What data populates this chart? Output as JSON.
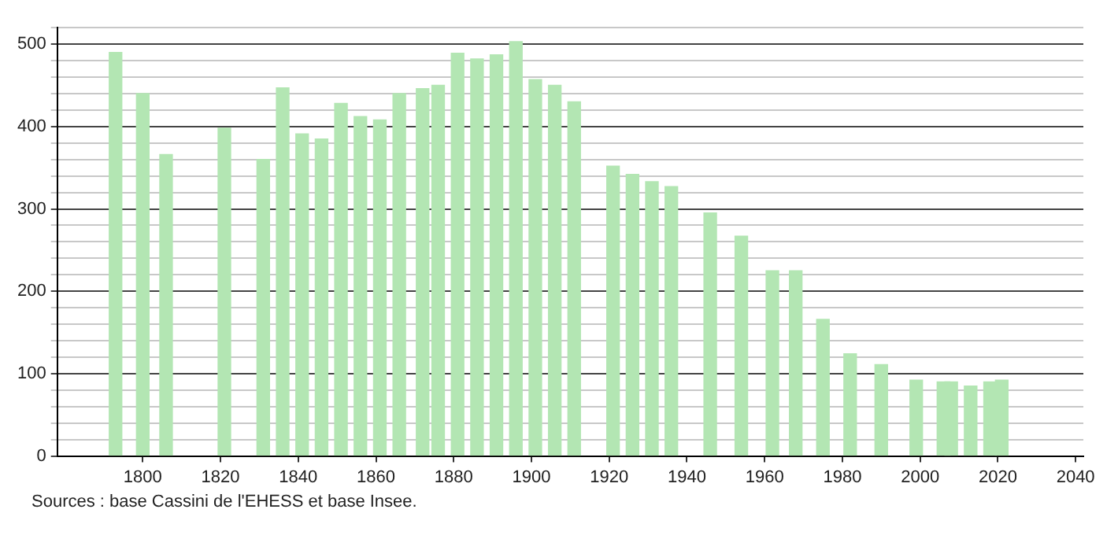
{
  "chart_data": {
    "type": "bar",
    "x": [
      1793,
      1800,
      1806,
      1821,
      1831,
      1836,
      1841,
      1846,
      1851,
      1856,
      1861,
      1866,
      1872,
      1876,
      1881,
      1886,
      1891,
      1896,
      1901,
      1906,
      1911,
      1921,
      1926,
      1931,
      1936,
      1946,
      1954,
      1962,
      1968,
      1975,
      1982,
      1990,
      1999,
      2006,
      2008,
      2013,
      2018,
      2021
    ],
    "values": [
      490,
      440,
      366,
      398,
      360,
      447,
      391,
      385,
      428,
      412,
      408,
      440,
      446,
      450,
      489,
      482,
      487,
      503,
      457,
      450,
      430,
      352,
      342,
      333,
      327,
      295,
      267,
      225,
      225,
      166,
      124,
      111,
      92,
      90,
      90,
      85,
      90,
      92
    ],
    "color": "#b3e6b3",
    "xlim": [
      1778,
      2042
    ],
    "xticks": [
      1800,
      1820,
      1840,
      1860,
      1880,
      1900,
      1920,
      1940,
      1960,
      1980,
      2000,
      2020,
      2040
    ],
    "ylim": [
      0,
      520
    ],
    "yticks": [
      0,
      {
        "value": 20,
        "label": null
      },
      {
        "value": 40,
        "label": null
      },
      {
        "value": 60,
        "label": null
      },
      {
        "value": 80,
        "label": null
      },
      100,
      {
        "value": 120,
        "label": null
      },
      {
        "value": 140,
        "label": null
      },
      {
        "value": 160,
        "label": null
      },
      {
        "value": 180,
        "label": null
      },
      200,
      {
        "value": 220,
        "label": null
      },
      {
        "value": 240,
        "label": null
      },
      {
        "value": 260,
        "label": null
      },
      {
        "value": 280,
        "label": null
      },
      300,
      {
        "value": 320,
        "label": null
      },
      {
        "value": 340,
        "label": null
      },
      {
        "value": 360,
        "label": null
      },
      {
        "value": 380,
        "label": null
      },
      400,
      {
        "value": 420,
        "label": null
      },
      {
        "value": 440,
        "label": null
      },
      {
        "value": 460,
        "label": null
      },
      {
        "value": 480,
        "label": null
      },
      500,
      {
        "value": 520,
        "label": null
      }
    ],
    "grid": "y",
    "annotations": [
      "Sources : base Cassini de l'EHESS et base Insee."
    ]
  }
}
